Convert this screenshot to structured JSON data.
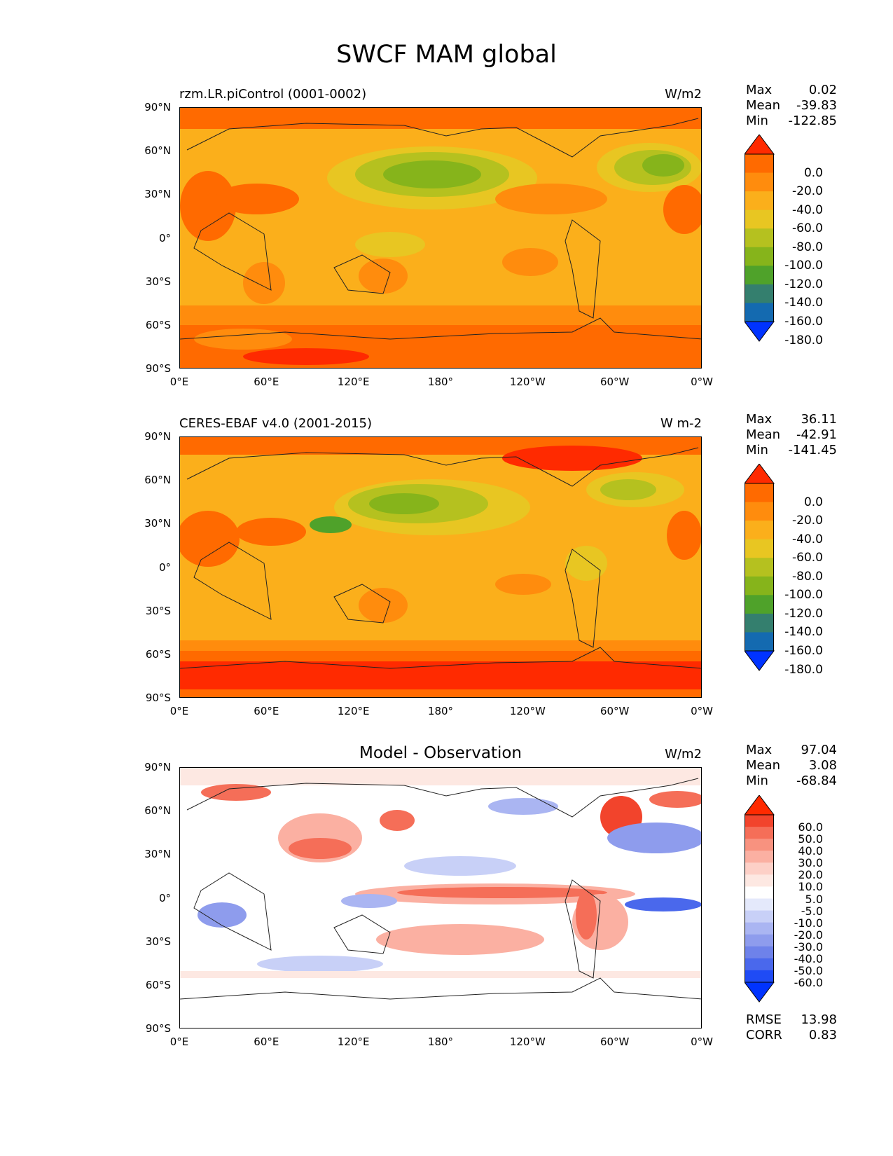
{
  "figure_title": "SWCF MAM global",
  "y_ticks": [
    "90°N",
    "60°N",
    "30°N",
    "0°",
    "30°S",
    "60°S",
    "90°S"
  ],
  "x_ticks": [
    "0°E",
    "60°E",
    "120°E",
    "180°",
    "120°W",
    "60°W",
    "0°W"
  ],
  "panels": [
    {
      "title_left": "rzm.LR.piControl (0001-0002)",
      "title_center": "",
      "units": "W/m2",
      "stats": {
        "max_label": "Max",
        "max": "0.02",
        "mean_label": "Mean",
        "mean": "-39.83",
        "min_label": "Min",
        "min": "-122.85"
      },
      "colorbar_ticks": [
        "0.0",
        "-20.0",
        "-40.0",
        "-60.0",
        "-80.0",
        "-100.0",
        "-120.0",
        "-140.0",
        "-160.0",
        "-180.0"
      ]
    },
    {
      "title_left": "CERES-EBAF v4.0 (2001-2015)",
      "title_center": "",
      "units": "W m-2",
      "stats": {
        "max_label": "Max",
        "max": "36.11",
        "mean_label": "Mean",
        "mean": "-42.91",
        "min_label": "Min",
        "min": "-141.45"
      },
      "colorbar_ticks": [
        "0.0",
        "-20.0",
        "-40.0",
        "-60.0",
        "-80.0",
        "-100.0",
        "-120.0",
        "-140.0",
        "-160.0",
        "-180.0"
      ]
    },
    {
      "title_left": "",
      "title_center": "Model - Observation",
      "units": "W/m2",
      "stats": {
        "max_label": "Max",
        "max": "97.04",
        "mean_label": "Mean",
        "mean": "3.08",
        "min_label": "Min",
        "min": "-68.84"
      },
      "colorbar_ticks": [
        "60.0",
        "50.0",
        "40.0",
        "30.0",
        "20.0",
        "10.0",
        "5.0",
        "-5.0",
        "-10.0",
        "-20.0",
        "-30.0",
        "-40.0",
        "-50.0",
        "-60.0"
      ],
      "extra": {
        "rmse_label": "RMSE",
        "rmse": "13.98",
        "corr_label": "CORR",
        "corr": "0.83"
      }
    }
  ],
  "colors": {
    "abs_scale": [
      "#ff2a00",
      "#ff6a00",
      "#ff8c0d",
      "#fbaf1b",
      "#e8c622",
      "#b5c11f",
      "#86b41b",
      "#4fa22a",
      "#347f6e",
      "#146ab0",
      "#0033ff"
    ],
    "diff_scale": [
      "#ff2a00",
      "#f2442c",
      "#f56e58",
      "#f8927f",
      "#fbb0a2",
      "#fdd0c7",
      "#fde8e2",
      "#ffffff",
      "#e4e9fb",
      "#c8d0f7",
      "#aab5f2",
      "#8e9ced",
      "#6e82ea",
      "#4a68ec",
      "#1f4bf5",
      "#0033ff"
    ]
  }
}
